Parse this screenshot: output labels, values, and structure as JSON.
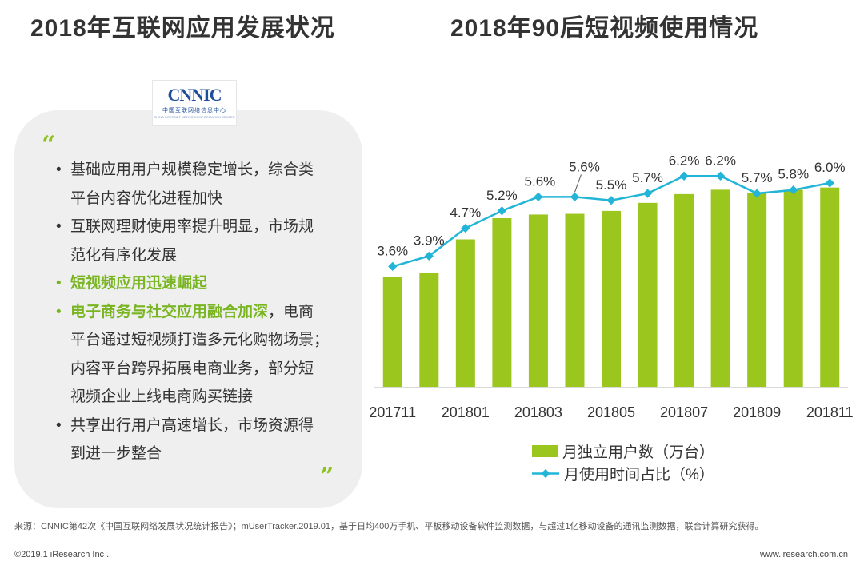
{
  "left_title": "2018年互联网应用发展状况",
  "right_title": "2018年90后短视频使用情况",
  "logo": {
    "mark": "CNNIC",
    "cn": "中国互联网络信息中心",
    "en": "CHINA INTERNET NETWORK INFORMATION CENTER"
  },
  "quotes": {
    "open": "“",
    "close": "”"
  },
  "bullet_symbol": "•",
  "bullets": [
    {
      "lines": [
        "基础应用用户规模稳定增长，综合类",
        "平台内容优化进程加快"
      ]
    },
    {
      "lines": [
        "互联网理财使用率提升明显，市场规",
        "范化有序化发展"
      ]
    },
    {
      "highlight": "短视频应用迅速崛起"
    },
    {
      "highlight": "电子商务与社交应用融合加深",
      "rest_first": "，电商",
      "lines": [
        "平台通过短视频打造多元化购物场景；",
        "内容平台跨界拓展电商业务，部分短",
        "视频企业上线电商购买链接"
      ]
    },
    {
      "lines": [
        "共享出行用户高速增长，市场资源得",
        "到进一步整合"
      ]
    }
  ],
  "chart_data": {
    "type": "bar+line",
    "title": "2018年90后短视频使用情况",
    "categories": [
      "201711",
      "201712",
      "201801",
      "201802",
      "201803",
      "201804",
      "201805",
      "201806",
      "201807",
      "201808",
      "201809",
      "201810",
      "201811"
    ],
    "tick_labels": [
      "201711",
      "201801",
      "201803",
      "201805",
      "201807",
      "201809",
      "201811"
    ],
    "series": [
      {
        "name": "月独立用户数（万台）",
        "type": "bar",
        "axis": "left",
        "values": [
          15000,
          15600,
          20200,
          23100,
          23600,
          23700,
          24100,
          25200,
          26400,
          27000,
          26500,
          27000,
          27300
        ],
        "ylim": [
          0,
          30000
        ]
      },
      {
        "name": "月使用时间占比（%）",
        "type": "line",
        "axis": "right",
        "values": [
          3.6,
          3.9,
          4.7,
          5.2,
          5.6,
          5.6,
          5.5,
          5.7,
          6.2,
          6.2,
          5.7,
          5.8,
          6.0
        ],
        "labels": [
          "3.6%",
          "3.9%",
          "4.7%",
          "5.2%",
          "5.6%",
          "5.6%",
          "5.5%",
          "5.7%",
          "6.2%",
          "6.2%",
          "5.7%",
          "5.8%",
          "6.0%"
        ],
        "ylim": [
          0,
          8
        ]
      }
    ],
    "colors": {
      "bar": "#9bc61e",
      "line": "#23b5d8"
    },
    "legend_position": "bottom"
  },
  "source": "来源：CNNIC第42次《中国互联网络发展状况统计报告》；mUserTracker.2019.01，基于日均400万手机、平板移动设备软件监测数据，与超过1亿移动设备的通讯监测数据，联合计算研究获得。",
  "footer": {
    "copyright": "©2019.1 iResearch Inc .",
    "site": "www.iresearch.com.cn"
  }
}
